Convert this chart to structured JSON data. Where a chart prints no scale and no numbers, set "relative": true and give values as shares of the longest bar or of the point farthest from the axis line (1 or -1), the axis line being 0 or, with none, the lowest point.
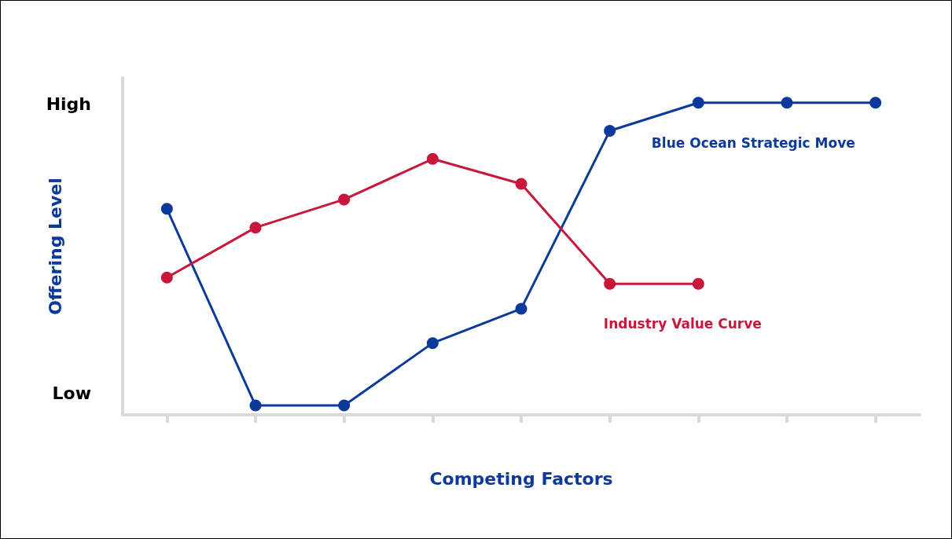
{
  "chart_data": {
    "type": "line",
    "xlabel": "Competing Factors",
    "ylabel": "Offering Level",
    "categories": [
      null,
      null,
      null,
      null,
      null,
      null,
      null,
      null,
      null
    ],
    "series": [
      {
        "name": "Blue Ocean Strategic Move",
        "color": "#0b3a9b",
        "values": [
          0.66,
          0.03,
          0.03,
          0.23,
          0.34,
          0.91,
          1,
          1,
          1
        ]
      },
      {
        "name": "Industry Value Curve",
        "color": "#c8173a",
        "values": [
          0.44,
          0.6,
          0.69,
          0.82,
          0.74,
          0.42,
          0.42,
          null,
          null
        ]
      }
    ],
    "relative": true,
    "annotations": [
      "High",
      "Low"
    ],
    "marker": "circle",
    "line_style": "solid",
    "grid": false,
    "legend": false
  }
}
